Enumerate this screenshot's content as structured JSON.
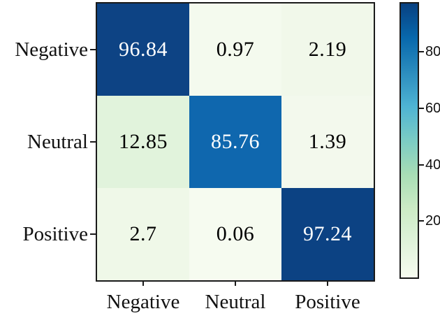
{
  "figure": {
    "background": "#ffffff",
    "axes_edge_color": "#1a1a1a",
    "tick_color": "#1a1a1a",
    "label_color": "#111111"
  },
  "chart_data": {
    "type": "heatmap",
    "title": "",
    "xlabel": "",
    "ylabel": "",
    "x_tick_labels": [
      "Negative",
      "Neutral",
      "Positive"
    ],
    "y_tick_labels": [
      "Negative",
      "Neutral",
      "Positive"
    ],
    "matrix": [
      [
        96.84,
        0.97,
        2.19
      ],
      [
        12.85,
        85.76,
        1.39
      ],
      [
        2.7,
        0.06,
        97.24
      ]
    ],
    "cell_text": [
      [
        "96.84",
        "0.97",
        "2.19"
      ],
      [
        "12.85",
        "85.76",
        "1.39"
      ],
      [
        "2.7",
        "0.06",
        "97.24"
      ]
    ],
    "cell_colors": [
      [
        "#0d4384",
        "#f4faee",
        "#f1f8ea"
      ],
      [
        "#e1f3dc",
        "#0f67ae",
        "#f3f9ed"
      ],
      [
        "#eff8e8",
        "#f6fbf0",
        "#0c4283"
      ]
    ],
    "cell_text_colors": [
      [
        "#ffffff",
        "#000000",
        "#000000"
      ],
      [
        "#000000",
        "#ffffff",
        "#000000"
      ],
      [
        "#000000",
        "#000000",
        "#ffffff"
      ]
    ],
    "grid": false,
    "colormap_name": "GnBu",
    "vmin": 0,
    "vmax": 97.24,
    "colorbar": {
      "position": "right",
      "ticks": [
        20,
        40,
        60,
        80
      ],
      "tick_labels": [
        "20",
        "40",
        "60",
        "80"
      ],
      "gradient_stops": [
        {
          "pos": 0.0,
          "color": "#f7fcf0"
        },
        {
          "pos": 0.125,
          "color": "#e0f3db"
        },
        {
          "pos": 0.25,
          "color": "#ccebc5"
        },
        {
          "pos": 0.375,
          "color": "#a8ddb5"
        },
        {
          "pos": 0.5,
          "color": "#7bccc4"
        },
        {
          "pos": 0.625,
          "color": "#4eb3d3"
        },
        {
          "pos": 0.75,
          "color": "#2b8cbe"
        },
        {
          "pos": 0.875,
          "color": "#0868ac"
        },
        {
          "pos": 1.0,
          "color": "#084081"
        }
      ]
    }
  }
}
